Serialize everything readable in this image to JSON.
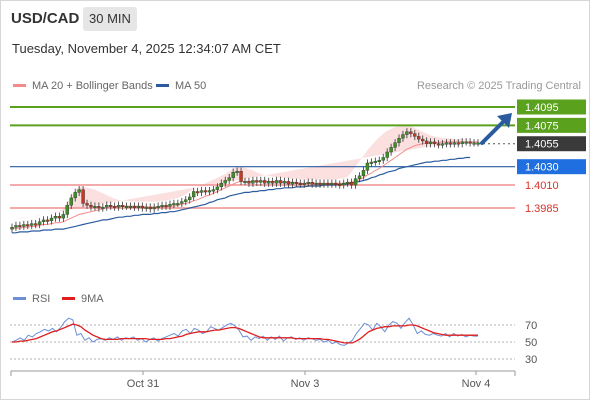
{
  "header": {
    "symbol": "USD/CAD",
    "interval": "30 MIN",
    "timestamp": "Tuesday, November 4, 2025 12:34:07 AM CET"
  },
  "legend": {
    "bb_label": "MA 20 + Bollinger Bands",
    "ma50_label": "MA 50",
    "credit": "Research © 2025 Trading Central",
    "rsi_label": "RSI",
    "rsi_ma_label": "9MA"
  },
  "colors": {
    "ma20": "#f28b8b",
    "band_fill": "#fbd9d9",
    "ma50": "#2a5b9f",
    "resistance": "#5aa21e",
    "support": "#f08f8f",
    "pivot": "#2a5b9f",
    "current": "#3a3a3a",
    "arrow": "#2a5b9f",
    "candle_up": "#3f8f29",
    "candle_down": "#c23b22",
    "rsi": "#6c8fd6",
    "rsi_ma": "#e01e1e"
  },
  "chart_data": [
    {
      "type": "candlestick",
      "title": "",
      "ylim": [
        1.3955,
        1.41
      ],
      "x_labels": [
        "Oct 31",
        "Nov 3",
        "Nov 4"
      ],
      "levels": [
        {
          "name": "resistance_2",
          "value": "1.4095",
          "kind": "resistance"
        },
        {
          "name": "resistance_1",
          "value": "1.4075",
          "kind": "resistance"
        },
        {
          "name": "current",
          "value": "1.4055",
          "kind": "current"
        },
        {
          "name": "pivot",
          "value": "1.4030",
          "kind": "pivot"
        },
        {
          "name": "support_1",
          "value": "1.4010",
          "kind": "support"
        },
        {
          "name": "support_2",
          "value": "1.3985",
          "kind": "support"
        }
      ],
      "close": [
        1.3964,
        1.3966,
        1.3965,
        1.3967,
        1.3966,
        1.3968,
        1.3967,
        1.397,
        1.3972,
        1.3971,
        1.3974,
        1.3976,
        1.3974,
        1.3978,
        1.3988,
        1.3996,
        1.4002,
        1.4005,
        1.399,
        1.3988,
        1.3986,
        1.3987,
        1.3985,
        1.3986,
        1.3988,
        1.3987,
        1.3986,
        1.3988,
        1.3987,
        1.3987,
        1.3987,
        1.3986,
        1.3987,
        1.3985,
        1.3986,
        1.3984,
        1.3986,
        1.3987,
        1.3988,
        1.3987,
        1.3989,
        1.399,
        1.399,
        1.3992,
        1.3994,
        1.3997,
        1.4003,
        1.4002,
        1.4004,
        1.4003,
        1.4004,
        1.4005,
        1.4008,
        1.4012,
        1.4015,
        1.4018,
        1.4024,
        1.4025,
        1.4014,
        1.4014,
        1.4012,
        1.4015,
        1.4013,
        1.4015,
        1.4012,
        1.4014,
        1.4012,
        1.4015,
        1.4012,
        1.4014,
        1.4011,
        1.4013,
        1.4012,
        1.4011,
        1.4012,
        1.4013,
        1.4011,
        1.4012,
        1.4011,
        1.4012,
        1.4011,
        1.4012,
        1.4011,
        1.401,
        1.4012,
        1.4013,
        1.401,
        1.4017,
        1.402,
        1.4026,
        1.4034,
        1.4035,
        1.4036,
        1.4037,
        1.404,
        1.4046,
        1.4051,
        1.4056,
        1.4061,
        1.4065,
        1.4068,
        1.4066,
        1.4063,
        1.406,
        1.4058,
        1.4055,
        1.4057,
        1.4055,
        1.4054,
        1.4055,
        1.4056,
        1.4055,
        1.4056,
        1.4055,
        1.4057,
        1.4057,
        1.4056,
        1.4056,
        1.4056
      ],
      "ma20": [
        1.3962,
        1.3963,
        1.3963,
        1.3964,
        1.3964,
        1.3965,
        1.3965,
        1.3966,
        1.3967,
        1.3967,
        1.3968,
        1.3969,
        1.3969,
        1.397,
        1.3972,
        1.3974,
        1.3976,
        1.3978,
        1.3979,
        1.398,
        1.3981,
        1.3982,
        1.3983,
        1.3984,
        1.3985,
        1.3986,
        1.3986,
        1.3987,
        1.3987,
        1.3987,
        1.3987,
        1.3987,
        1.3987,
        1.3987,
        1.3986,
        1.3986,
        1.3986,
        1.3986,
        1.3986,
        1.3986,
        1.3987,
        1.3987,
        1.3988,
        1.3989,
        1.399,
        1.3991,
        1.3993,
        1.3994,
        1.3996,
        1.3998,
        1.3999,
        1.4001,
        1.4003,
        1.4005,
        1.4007,
        1.4009,
        1.4011,
        1.4013,
        1.4014,
        1.4014,
        1.4014,
        1.4014,
        1.4014,
        1.4014,
        1.4014,
        1.4014,
        1.4014,
        1.4014,
        1.4013,
        1.4013,
        1.4013,
        1.4013,
        1.4013,
        1.4012,
        1.4012,
        1.4012,
        1.4012,
        1.4012,
        1.4012,
        1.4012,
        1.4012,
        1.4012,
        1.4012,
        1.4012,
        1.4012,
        1.4013,
        1.4013,
        1.4014,
        1.4016,
        1.4018,
        1.4021,
        1.4023,
        1.4026,
        1.4028,
        1.4031,
        1.4034,
        1.4037,
        1.404,
        1.4043,
        1.4046,
        1.4049,
        1.4051,
        1.4053,
        1.4054,
        1.4055,
        1.4056,
        1.4056,
        1.4056,
        1.4056,
        1.4057,
        1.4057,
        1.4057,
        1.4057,
        1.4057,
        1.4057,
        1.4057,
        1.4057,
        1.4057,
        1.4057
      ],
      "band_upper": [
        1.3972,
        1.3973,
        1.3974,
        1.3975,
        1.3975,
        1.3976,
        1.3976,
        1.3977,
        1.3978,
        1.3979,
        1.398,
        1.3981,
        1.3982,
        1.3984,
        1.399,
        1.3998,
        1.4004,
        1.4008,
        1.4008,
        1.4007,
        1.4006,
        1.4005,
        1.4003,
        1.4001,
        1.3999,
        1.3997,
        1.3995,
        1.3994,
        1.3993,
        1.3993,
        1.3992,
        1.3992,
        1.3992,
        1.3992,
        1.3992,
        1.3992,
        1.3992,
        1.3992,
        1.3993,
        1.3993,
        1.3994,
        1.3995,
        1.3996,
        1.3998,
        1.4,
        1.4003,
        1.4006,
        1.4008,
        1.401,
        1.4012,
        1.4014,
        1.4016,
        1.4018,
        1.402,
        1.4022,
        1.4025,
        1.4028,
        1.403,
        1.403,
        1.4029,
        1.4027,
        1.4026,
        1.4024,
        1.4022,
        1.4021,
        1.402,
        1.4019,
        1.4019,
        1.4018,
        1.4018,
        1.4017,
        1.4017,
        1.4017,
        1.4016,
        1.4016,
        1.4016,
        1.4016,
        1.4016,
        1.4016,
        1.4016,
        1.4016,
        1.4016,
        1.4016,
        1.4017,
        1.4017,
        1.4019,
        1.4024,
        1.403,
        1.4036,
        1.4042,
        1.4048,
        1.4053,
        1.4058,
        1.4062,
        1.4066,
        1.4069,
        1.4071,
        1.4073,
        1.4074,
        1.4075,
        1.4075,
        1.4074,
        1.4072,
        1.407,
        1.4068,
        1.4066,
        1.4064,
        1.4063,
        1.4062,
        1.4061,
        1.4061,
        1.4061,
        1.406,
        1.406,
        1.406,
        1.406,
        1.406
      ],
      "band_lower": [
        1.3952,
        1.3953,
        1.3952,
        1.3953,
        1.3953,
        1.3954,
        1.3954,
        1.3955,
        1.3956,
        1.3955,
        1.3956,
        1.3957,
        1.3956,
        1.3956,
        1.3954,
        1.395,
        1.3948,
        1.3948,
        1.395,
        1.3953,
        1.3956,
        1.3959,
        1.3963,
        1.3967,
        1.3971,
        1.3975,
        1.3977,
        1.398,
        1.3981,
        1.3981,
        1.3982,
        1.3982,
        1.3982,
        1.3982,
        1.398,
        1.398,
        1.398,
        1.398,
        1.3979,
        1.3979,
        1.398,
        1.3979,
        1.398,
        1.398,
        1.398,
        1.3979,
        1.398,
        1.398,
        1.3982,
        1.3984,
        1.3984,
        1.3986,
        1.3988,
        1.399,
        1.3992,
        1.3993,
        1.3994,
        1.3996,
        1.3998,
        1.3999,
        1.4001,
        1.4002,
        1.4004,
        1.4006,
        1.4007,
        1.4008,
        1.4009,
        1.4009,
        1.4008,
        1.4008,
        1.4009,
        1.4009,
        1.4009,
        1.4008,
        1.4008,
        1.4008,
        1.4008,
        1.4008,
        1.4008,
        1.4008,
        1.4008,
        1.4008,
        1.4008,
        1.4007,
        1.4007,
        1.4007,
        1.4002,
        1.3998,
        1.3996,
        1.3994,
        1.3994,
        1.3993,
        1.3994,
        1.3994,
        1.3996,
        1.3999,
        1.4003,
        1.4007,
        1.4012,
        1.4017,
        1.4023,
        1.4028,
        1.4034,
        1.4038,
        1.4042,
        1.4046,
        1.4048,
        1.4049,
        1.405,
        1.4053,
        1.4053,
        1.4053,
        1.4054,
        1.4054,
        1.4054,
        1.4054,
        1.4054
      ],
      "ma50": [
        1.3958,
        1.3958,
        1.3959,
        1.3959,
        1.3959,
        1.396,
        1.396,
        1.396,
        1.3961,
        1.3961,
        1.3961,
        1.3962,
        1.3962,
        1.3962,
        1.3963,
        1.3964,
        1.3965,
        1.3966,
        1.3967,
        1.3968,
        1.3969,
        1.397,
        1.3971,
        1.3972,
        1.3972,
        1.3973,
        1.3974,
        1.3975,
        1.3975,
        1.3976,
        1.3976,
        1.3977,
        1.3977,
        1.3978,
        1.3978,
        1.3978,
        1.3979,
        1.3979,
        1.398,
        1.398,
        1.3981,
        1.3981,
        1.3982,
        1.3983,
        1.3984,
        1.3985,
        1.3986,
        1.3987,
        1.3988,
        1.3989,
        1.3991,
        1.3992,
        1.3994,
        1.3995,
        1.3996,
        1.3998,
        1.3999,
        1.4,
        1.4001,
        1.4002,
        1.4002,
        1.4003,
        1.4003,
        1.4004,
        1.4004,
        1.4005,
        1.4005,
        1.4006,
        1.4006,
        1.4007,
        1.4007,
        1.4007,
        1.4008,
        1.4008,
        1.4008,
        1.4009,
        1.4009,
        1.4009,
        1.4009,
        1.401,
        1.401,
        1.401,
        1.401,
        1.4011,
        1.4011,
        1.4011,
        1.4012,
        1.4013,
        1.4014,
        1.4015,
        1.4016,
        1.4018,
        1.4019,
        1.4021,
        1.4022,
        1.4024,
        1.4025,
        1.4026,
        1.4028,
        1.4029,
        1.403,
        1.4031,
        1.4032,
        1.4033,
        1.4034,
        1.4035,
        1.4035,
        1.4036,
        1.4036,
        1.4037,
        1.4037,
        1.4038,
        1.4038,
        1.4039,
        1.4039,
        1.404,
        1.404
      ]
    },
    {
      "type": "line",
      "title": "",
      "ylim": [
        20,
        85
      ],
      "y_ticks": [
        "70",
        "50",
        "30"
      ],
      "series": [
        {
          "name": "RSI",
          "values": [
            50,
            52,
            55,
            52,
            58,
            56,
            60,
            62,
            65,
            63,
            66,
            62,
            67,
            74,
            78,
            76,
            58,
            60,
            52,
            55,
            50,
            53,
            54,
            52,
            55,
            53,
            56,
            52,
            55,
            54,
            56,
            52,
            54,
            50,
            53,
            55,
            51,
            54,
            56,
            58,
            60,
            57,
            63,
            65,
            60,
            66,
            64,
            60,
            62,
            68,
            66,
            64,
            67,
            70,
            72,
            69,
            64,
            56,
            57,
            52,
            56,
            54,
            57,
            52,
            56,
            53,
            57,
            51,
            55,
            56,
            53,
            55,
            52,
            55,
            54,
            52,
            53,
            50,
            52,
            48,
            50,
            47,
            46,
            49,
            52,
            60,
            66,
            72,
            70,
            64,
            72,
            68,
            62,
            70,
            74,
            72,
            66,
            73,
            78,
            70,
            60,
            63,
            59,
            58,
            60,
            58,
            57,
            60,
            56,
            60,
            57,
            59,
            56,
            58,
            57,
            57
          ]
        },
        {
          "name": "9MA",
          "values": [
            50,
            50,
            51,
            51,
            52,
            53,
            54,
            56,
            58,
            60,
            62,
            63,
            65,
            67,
            69,
            71,
            70,
            68,
            64,
            61,
            58,
            56,
            54,
            53,
            53,
            53,
            53,
            54,
            54,
            54,
            54,
            54,
            54,
            54,
            53,
            53,
            53,
            53,
            54,
            54,
            55,
            56,
            57,
            59,
            60,
            61,
            62,
            62,
            62,
            63,
            64,
            64,
            65,
            66,
            67,
            67,
            66,
            64,
            62,
            60,
            58,
            56,
            55,
            55,
            55,
            55,
            55,
            55,
            55,
            55,
            54,
            54,
            54,
            54,
            54,
            54,
            54,
            53,
            53,
            52,
            51,
            50,
            49,
            49,
            49,
            51,
            54,
            58,
            62,
            64,
            66,
            67,
            68,
            68,
            69,
            69,
            69,
            69,
            70,
            70,
            69,
            67,
            65,
            63,
            61,
            60,
            59,
            58,
            58,
            58,
            58,
            58,
            58,
            58,
            58,
            58
          ]
        }
      ]
    }
  ]
}
